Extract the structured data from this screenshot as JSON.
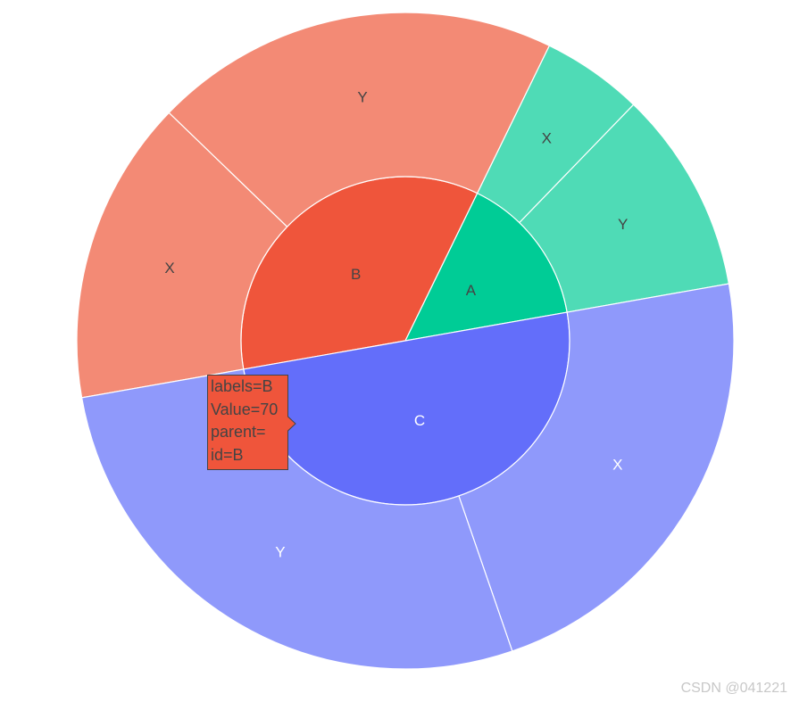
{
  "chart_data": {
    "type": "sunburst",
    "nodes": [
      {
        "id": "B",
        "label": "B",
        "parent": "",
        "value": 70,
        "color": "#EF553B"
      },
      {
        "id": "A",
        "label": "A",
        "parent": "",
        "value": 30,
        "color": "#00CC96"
      },
      {
        "id": "C",
        "label": "C",
        "parent": "",
        "value": 100,
        "color": "#636EFA"
      },
      {
        "id": "B/X",
        "label": "X",
        "parent": "B",
        "value": 30,
        "color": "#F38A75"
      },
      {
        "id": "B/Y",
        "label": "Y",
        "parent": "B",
        "value": 40,
        "color": "#F38A75"
      },
      {
        "id": "A/X",
        "label": "X",
        "parent": "A",
        "value": 10,
        "color": "#4FDBB6"
      },
      {
        "id": "A/Y",
        "label": "Y",
        "parent": "A",
        "value": 20,
        "color": "#4FDBB6"
      },
      {
        "id": "C/X",
        "label": "X",
        "parent": "C",
        "value": 45,
        "color": "#8F99FB"
      },
      {
        "id": "C/Y",
        "label": "Y",
        "parent": "C",
        "value": 55,
        "color": "#8F99FB"
      }
    ]
  },
  "tooltip": {
    "line1": "labels=B",
    "line2": "Value=70",
    "line3": "parent=",
    "line4": "id=B"
  },
  "watermark": "CSDN @041221"
}
